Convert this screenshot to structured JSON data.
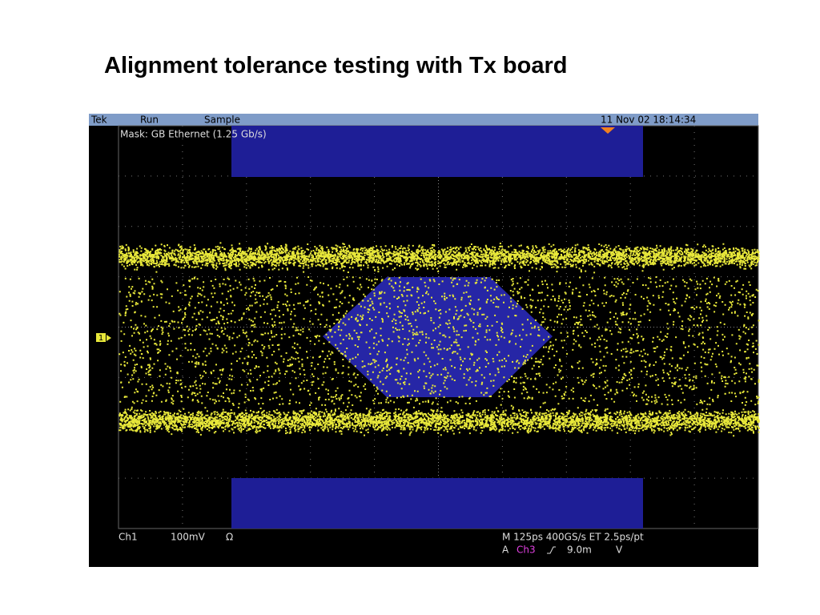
{
  "slide": {
    "title": "Alignment tolerance testing with Tx board"
  },
  "scope": {
    "header": {
      "brand": "Tek",
      "mode": "Run",
      "acquisition": "Sample",
      "timestamp": "11 Nov 02 18:14:34"
    },
    "mask": "Mask: GB Ethernet (1.25 Gb/s)",
    "channel_marker": "1",
    "footer": {
      "channel": "Ch1",
      "scale": "100mV",
      "impedance": "Ω",
      "timebase": "M 125ps 400GS/s ET 2.5ps/pt",
      "trigger_label": "A",
      "trigger_source": "Ch3",
      "trigger_level": "9.0m",
      "trigger_unit": "V"
    }
  }
}
